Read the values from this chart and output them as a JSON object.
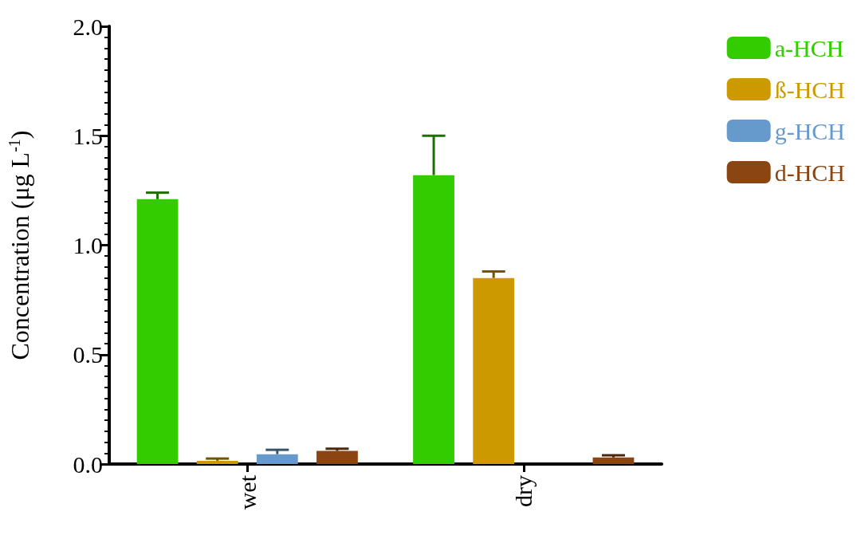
{
  "chart_data": {
    "type": "bar",
    "ylabel": "Concentration (μg L$^{-1}$)",
    "categories": [
      "wet",
      "dry"
    ],
    "series": [
      {
        "name": "a-HCH",
        "color": "#33cc00",
        "values": [
          1.21,
          1.32
        ],
        "errors": [
          [
            1.21,
            1.24
          ],
          [
            1.32,
            1.5
          ]
        ]
      },
      {
        "name": "ß-HCH",
        "color": "#cc9900",
        "values": [
          0.015,
          0.85
        ],
        "errors": [
          [
            0.015,
            0.025
          ],
          [
            0.85,
            0.88
          ]
        ]
      },
      {
        "name": "g-HCH",
        "color": "#6699cc",
        "values": [
          0.045,
          null
        ],
        "errors": [
          [
            0.045,
            0.065
          ],
          null
        ]
      },
      {
        "name": "d-HCH",
        "color": "#8b4513",
        "values": [
          0.06,
          0.03
        ],
        "errors": [
          [
            0.06,
            0.07
          ],
          [
            0.03,
            0.04
          ]
        ]
      }
    ],
    "ylim": [
      0,
      2
    ],
    "yticks": [
      {
        "value": 0,
        "label": "0.0"
      },
      {
        "value": 0.5,
        "label": "0.5"
      },
      {
        "value": 1,
        "label": "1.0"
      },
      {
        "value": 1.5,
        "label": "1.5"
      },
      {
        "value": 2,
        "label": "2.0"
      }
    ],
    "grid": false,
    "legend": "top right"
  }
}
